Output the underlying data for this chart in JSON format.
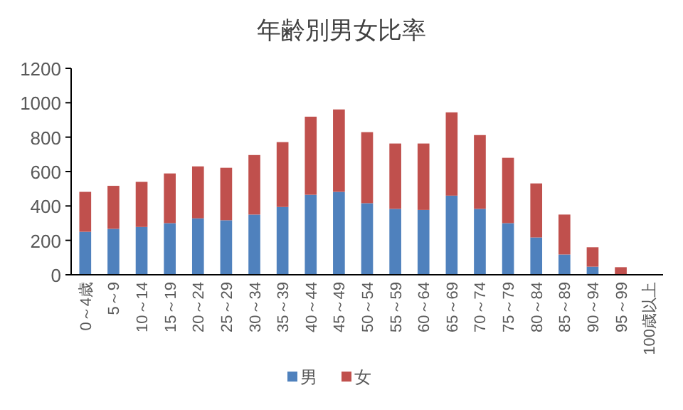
{
  "chart_data": {
    "type": "bar",
    "title": "年齢別男女比率",
    "stacked": true,
    "legend": "bottom",
    "grid": false,
    "categories": [
      "0～4歳",
      "5～9",
      "10～14",
      "15～19",
      "20～24",
      "25～29",
      "30～34",
      "35～39",
      "40～44",
      "45～49",
      "50～54",
      "55～59",
      "60～64",
      "65～69",
      "70～74",
      "75～79",
      "80～84",
      "85～89",
      "90～94",
      "95～99",
      "100歳以上"
    ],
    "ylim": [
      0,
      1200
    ],
    "yticks": [
      0,
      200,
      400,
      600,
      800,
      1000,
      1200
    ],
    "series": [
      {
        "name": "男",
        "color": "#4f81bd",
        "values": [
          250,
          267,
          278,
          300,
          328,
          317,
          350,
          394,
          465,
          482,
          416,
          383,
          377,
          460,
          383,
          300,
          217,
          118,
          47,
          0,
          0
        ]
      },
      {
        "name": "女",
        "color": "#c0504d",
        "values": [
          232,
          250,
          262,
          289,
          302,
          305,
          346,
          377,
          454,
          479,
          413,
          380,
          386,
          484,
          429,
          380,
          314,
          232,
          113,
          44,
          0
        ]
      }
    ]
  }
}
